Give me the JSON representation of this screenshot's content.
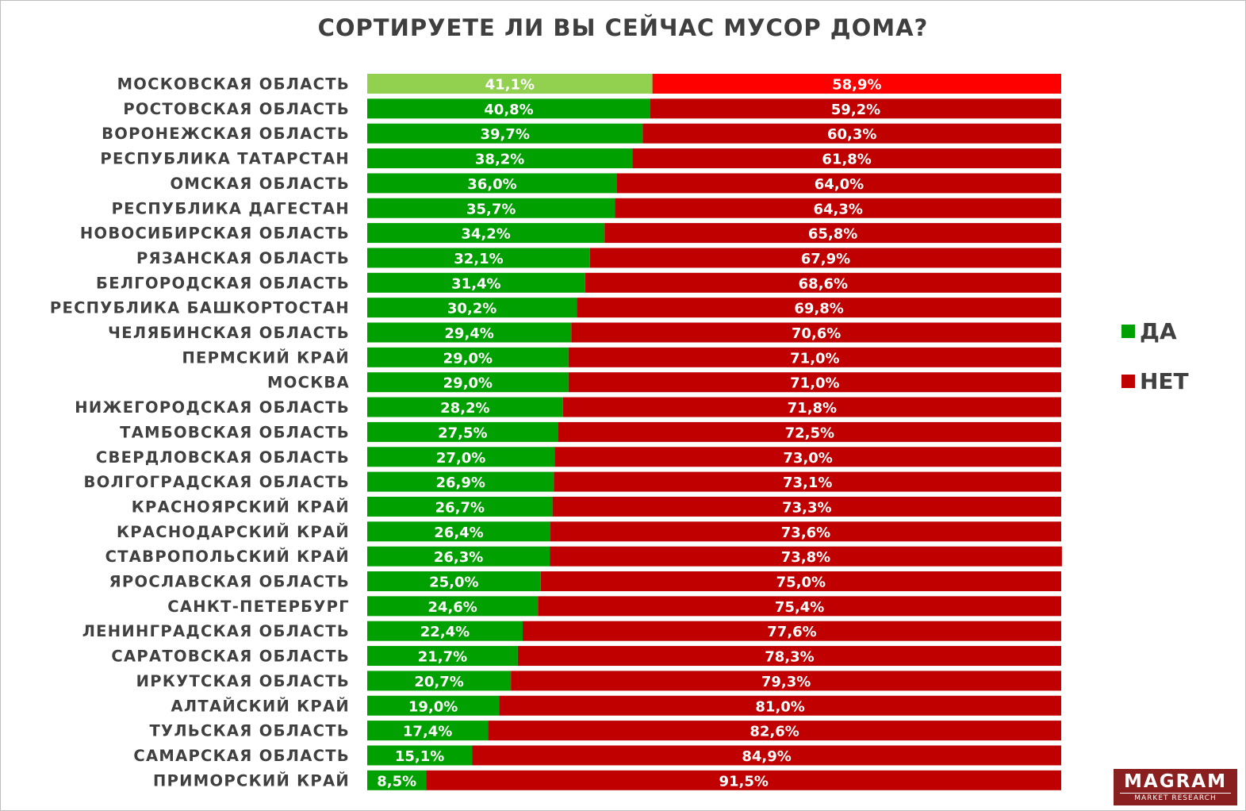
{
  "chart_data": {
    "type": "bar",
    "orientation": "horizontal",
    "stacked": true,
    "title": "СОРТИРУЕТЕ ЛИ ВЫ СЕЙЧАС МУСОР ДОМА?",
    "categories": [
      "МОСКОВСКАЯ ОБЛАСТЬ",
      "РОСТОВСКАЯ ОБЛАСТЬ",
      "ВОРОНЕЖСКАЯ ОБЛАСТЬ",
      "РЕСПУБЛИКА ТАТАРСТАН",
      "ОМСКАЯ ОБЛАСТЬ",
      "РЕСПУБЛИКА ДАГЕСТАН",
      "НОВОСИБИРСКАЯ ОБЛАСТЬ",
      "РЯЗАНСКАЯ ОБЛАСТЬ",
      "БЕЛГОРОДСКАЯ ОБЛАСТЬ",
      "РЕСПУБЛИКА БАШКОРТОСТАН",
      "ЧЕЛЯБИНСКАЯ ОБЛАСТЬ",
      "ПЕРМСКИЙ КРАЙ",
      "МОСКВА",
      "НИЖЕГОРОДСКАЯ ОБЛАСТЬ",
      "ТАМБОВСКАЯ ОБЛАСТЬ",
      "СВЕРДЛОВСКАЯ ОБЛАСТЬ",
      "ВОЛГОГРАДСКАЯ ОБЛАСТЬ",
      "КРАСНОЯРСКИЙ КРАЙ",
      "КРАСНОДАРСКИЙ КРАЙ",
      "СТАВРОПОЛЬСКИЙ КРАЙ",
      "ЯРОСЛАВСКАЯ ОБЛАСТЬ",
      "САНКТ-ПЕТЕРБУРГ",
      "ЛЕНИНГРАДСКАЯ ОБЛАСТЬ",
      "САРАТОВСКАЯ ОБЛАСТЬ",
      "ИРКУТСКАЯ ОБЛАСТЬ",
      "АЛТАЙСКИЙ КРАЙ",
      "ТУЛЬСКАЯ ОБЛАСТЬ",
      "САМАРСКАЯ ОБЛАСТЬ",
      "ПРИМОРСКИЙ КРАЙ"
    ],
    "series": [
      {
        "name": "ДА",
        "color": "#00a000",
        "highlight_color": "#92d050",
        "values": [
          41.1,
          40.8,
          39.7,
          38.2,
          36.0,
          35.7,
          34.2,
          32.1,
          31.4,
          30.2,
          29.4,
          29.0,
          29.0,
          28.2,
          27.5,
          27.0,
          26.9,
          26.7,
          26.4,
          26.3,
          25.0,
          24.6,
          22.4,
          21.7,
          20.7,
          19.0,
          17.4,
          15.1,
          8.5
        ],
        "labels": [
          "41,1%",
          "40,8%",
          "39,7%",
          "38,2%",
          "36,0%",
          "35,7%",
          "34,2%",
          "32,1%",
          "31,4%",
          "30,2%",
          "29,4%",
          "29,0%",
          "29,0%",
          "28,2%",
          "27,5%",
          "27,0%",
          "26,9%",
          "26,7%",
          "26,4%",
          "26,3%",
          "25,0%",
          "24,6%",
          "22,4%",
          "21,7%",
          "20,7%",
          "19,0%",
          "17,4%",
          "15,1%",
          "8,5%"
        ]
      },
      {
        "name": "НЕТ",
        "color": "#c00000",
        "highlight_color": "#ff0000",
        "values": [
          58.9,
          59.2,
          60.3,
          61.8,
          64.0,
          64.3,
          65.8,
          67.9,
          68.6,
          69.8,
          70.6,
          71.0,
          71.0,
          71.8,
          72.5,
          73.0,
          73.1,
          73.3,
          73.6,
          73.8,
          75.0,
          75.4,
          77.6,
          78.3,
          79.3,
          81.0,
          82.6,
          84.9,
          91.5
        ],
        "labels": [
          "58,9%",
          "59,2%",
          "60,3%",
          "61,8%",
          "64,0%",
          "64,3%",
          "65,8%",
          "67,9%",
          "68,6%",
          "69,8%",
          "70,6%",
          "71,0%",
          "71,0%",
          "71,8%",
          "72,5%",
          "73,0%",
          "73,1%",
          "73,3%",
          "73,6%",
          "73,8%",
          "75,0%",
          "75,4%",
          "77,6%",
          "78,3%",
          "79,3%",
          "81,0%",
          "82,6%",
          "84,9%",
          "91,5%"
        ]
      }
    ],
    "highlighted_category": "МОСКОВСКАЯ ОБЛАСТЬ",
    "xlim": [
      0,
      100
    ],
    "grid": false,
    "legend_position": "right"
  },
  "logo": {
    "main": "MAGRAM",
    "sub": "MARKET RESEARCH"
  }
}
